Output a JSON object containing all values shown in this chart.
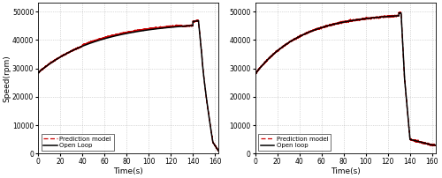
{
  "subplot1": {
    "xlabel": "Time(s)",
    "ylabel": "Speed(rpm)",
    "xlim": [
      0,
      163
    ],
    "ylim": [
      0,
      53000
    ],
    "xticks": [
      0,
      20,
      40,
      60,
      80,
      100,
      120,
      140,
      160
    ],
    "yticks": [
      0,
      10000,
      20000,
      30000,
      40000,
      50000
    ],
    "yticklabels": [
      "0",
      "10000",
      "20000",
      "30000",
      "40000",
      "50000"
    ],
    "legend": [
      "Open Loop",
      "Prediction model"
    ],
    "open_loop_color": "#000000",
    "pred_color": "#cc0000"
  },
  "subplot2": {
    "xlabel": "Time(s)",
    "ylabel": "",
    "xlim": [
      0,
      163
    ],
    "ylim": [
      0,
      53000
    ],
    "xticks": [
      0,
      20,
      40,
      60,
      80,
      100,
      120,
      140,
      160
    ],
    "yticks": [
      0,
      10000,
      20000,
      30000,
      40000,
      50000
    ],
    "yticklabels": [
      "0",
      "10000",
      "20000",
      "30000",
      "40000",
      "50000"
    ],
    "legend": [
      "Open loop",
      "Prediction model"
    ],
    "open_loop_color": "#000000",
    "pred_color": "#cc0000"
  },
  "background_color": "#ffffff",
  "grid_color": "#999999",
  "figsize": [
    5.0,
    2.02
  ],
  "dpi": 100
}
